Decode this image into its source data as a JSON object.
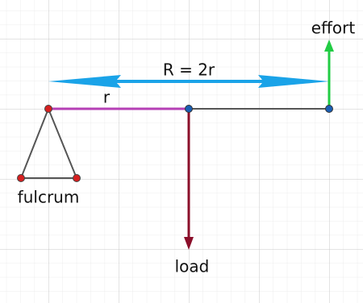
{
  "labels": {
    "effort": "effort",
    "span": "R = 2r",
    "arm": "r",
    "fulcrum": "fulcrum",
    "load": "load"
  }
}
